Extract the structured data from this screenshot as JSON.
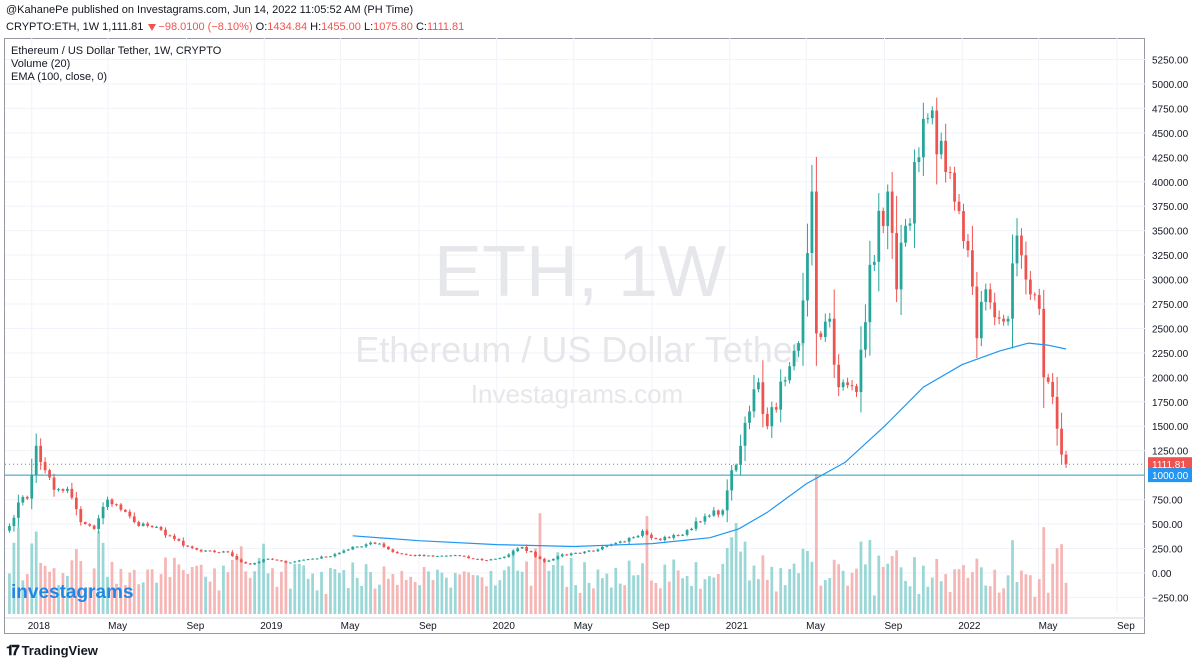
{
  "publisher_line": "@KahanePe published on Investagrams.com, Jun 14, 2022 11:05:52 AM (PH Time)",
  "ohlc": {
    "symbol": "CRYPTO:ETH, 1W",
    "last": "1,111.81",
    "change": "−98.0100 (−8.10%)",
    "o_label": "O:",
    "o": "1434.84",
    "h_label": "H:",
    "h": "1455.00",
    "l_label": "L:",
    "l": "1075.80",
    "c_label": "C:",
    "c": "1111.81"
  },
  "legend": {
    "title": "Ethereum / US Dollar Tether, 1W, CRYPTO",
    "volume": "Volume (20)",
    "ema": "EMA (100, close, 0)"
  },
  "watermark": {
    "line1": "ETH, 1W",
    "line2": "Ethereum / US Dollar Tether",
    "line3": "Investagrams.com"
  },
  "brand": "investagrams",
  "footer": "TradingView",
  "colors": {
    "up": "#26a69a",
    "down": "#ef5350",
    "ema": "#2196f3",
    "level": "#26a0b4",
    "vol_up": "#88d0cf",
    "vol_down": "#f5a9a9"
  },
  "chart_data": {
    "type": "candlestick",
    "symbol": "ETH/USDT",
    "timeframe": "1W",
    "xlim": [
      "2017-11-20",
      "2022-10-15"
    ],
    "ylim": [
      -420,
      5470
    ],
    "y_ticks": [
      "5250.00",
      "5000.00",
      "4750.00",
      "4500.00",
      "4250.00",
      "4000.00",
      "3750.00",
      "3500.00",
      "3250.00",
      "3000.00",
      "2750.00",
      "2500.00",
      "2250.00",
      "2000.00",
      "1750.00",
      "1500.00",
      "1250.00",
      "1000.00",
      "750.00",
      "500.00",
      "250.00",
      "0.00",
      "−250.00"
    ],
    "x_ticks": [
      {
        "label": "2018",
        "date": "2018-01-01"
      },
      {
        "label": "May",
        "date": "2018-05-01"
      },
      {
        "label": "Sep",
        "date": "2018-09-01"
      },
      {
        "label": "2019",
        "date": "2019-01-01"
      },
      {
        "label": "May",
        "date": "2019-05-01"
      },
      {
        "label": "Sep",
        "date": "2019-09-01"
      },
      {
        "label": "2020",
        "date": "2020-01-01"
      },
      {
        "label": "May",
        "date": "2020-05-01"
      },
      {
        "label": "Sep",
        "date": "2020-09-01"
      },
      {
        "label": "2021",
        "date": "2021-01-01"
      },
      {
        "label": "May",
        "date": "2021-05-01"
      },
      {
        "label": "Sep",
        "date": "2021-09-01"
      },
      {
        "label": "2022",
        "date": "2022-01-01"
      },
      {
        "label": "May",
        "date": "2022-05-01"
      },
      {
        "label": "Sep",
        "date": "2022-09-01"
      }
    ],
    "close_anchors": [
      [
        "2017-11-27",
        480
      ],
      [
        "2017-12-11",
        720
      ],
      [
        "2017-12-25",
        760
      ],
      [
        "2018-01-08",
        1300
      ],
      [
        "2018-01-22",
        1050
      ],
      [
        "2018-02-05",
        850
      ],
      [
        "2018-02-26",
        860
      ],
      [
        "2018-03-19",
        520
      ],
      [
        "2018-04-09",
        450
      ],
      [
        "2018-04-30",
        750
      ],
      [
        "2018-05-14",
        700
      ],
      [
        "2018-06-11",
        520
      ],
      [
        "2018-07-09",
        470
      ],
      [
        "2018-08-06",
        380
      ],
      [
        "2018-08-27",
        280
      ],
      [
        "2018-09-24",
        220
      ],
      [
        "2018-11-05",
        210
      ],
      [
        "2018-11-26",
        110
      ],
      [
        "2018-12-10",
        88
      ],
      [
        "2019-01-07",
        145
      ],
      [
        "2019-02-04",
        105
      ],
      [
        "2019-03-04",
        135
      ],
      [
        "2019-04-08",
        165
      ],
      [
        "2019-05-13",
        240
      ],
      [
        "2019-06-17",
        310
      ],
      [
        "2019-07-01",
        300
      ],
      [
        "2019-07-22",
        215
      ],
      [
        "2019-08-12",
        185
      ],
      [
        "2019-09-23",
        168
      ],
      [
        "2019-10-28",
        182
      ],
      [
        "2019-11-18",
        150
      ],
      [
        "2019-12-16",
        130
      ],
      [
        "2020-01-13",
        165
      ],
      [
        "2020-02-10",
        265
      ],
      [
        "2020-03-16",
        115
      ],
      [
        "2020-04-06",
        170
      ],
      [
        "2020-05-04",
        205
      ],
      [
        "2020-06-08",
        240
      ],
      [
        "2020-07-20",
        320
      ],
      [
        "2020-08-17",
        430
      ],
      [
        "2020-09-07",
        350
      ],
      [
        "2020-10-19",
        390
      ],
      [
        "2020-11-23",
        580
      ],
      [
        "2020-12-21",
        640
      ],
      [
        "2021-01-04",
        1050
      ],
      [
        "2021-01-18",
        1300
      ],
      [
        "2021-02-15",
        1950
      ],
      [
        "2021-03-01",
        1500
      ],
      [
        "2021-03-29",
        1970
      ],
      [
        "2021-04-19",
        2350
      ],
      [
        "2021-05-10",
        3900
      ],
      [
        "2021-05-17",
        2450
      ],
      [
        "2021-06-07",
        2600
      ],
      [
        "2021-06-21",
        1900
      ],
      [
        "2021-07-19",
        1850
      ],
      [
        "2021-08-09",
        3150
      ],
      [
        "2021-09-06",
        3900
      ],
      [
        "2021-09-20",
        2900
      ],
      [
        "2021-10-04",
        3550
      ],
      [
        "2021-10-25",
        4250
      ],
      [
        "2021-11-08",
        4650
      ],
      [
        "2021-11-22",
        4280
      ],
      [
        "2021-12-06",
        4100
      ],
      [
        "2021-12-27",
        3700
      ],
      [
        "2022-01-10",
        3300
      ],
      [
        "2022-01-24",
        2400
      ],
      [
        "2022-02-07",
        2900
      ],
      [
        "2022-02-28",
        2600
      ],
      [
        "2022-03-14",
        2600
      ],
      [
        "2022-03-28",
        3450
      ],
      [
        "2022-04-11",
        3000
      ],
      [
        "2022-05-02",
        2700
      ],
      [
        "2022-05-09",
        2000
      ],
      [
        "2022-05-23",
        1800
      ],
      [
        "2022-06-06",
        1210
      ],
      [
        "2022-06-13",
        1111.81
      ]
    ],
    "ema": {
      "name": "EMA (100, close, 0)",
      "points": [
        [
          "2019-05-20",
          380
        ],
        [
          "2019-09-01",
          330
        ],
        [
          "2020-01-01",
          290
        ],
        [
          "2020-05-01",
          270
        ],
        [
          "2020-09-01",
          300
        ],
        [
          "2020-12-01",
          360
        ],
        [
          "2021-01-15",
          450
        ],
        [
          "2021-03-01",
          620
        ],
        [
          "2021-05-01",
          910
        ],
        [
          "2021-07-01",
          1130
        ],
        [
          "2021-09-01",
          1500
        ],
        [
          "2021-11-01",
          1900
        ],
        [
          "2022-01-01",
          2130
        ],
        [
          "2022-03-01",
          2270
        ],
        [
          "2022-04-15",
          2350
        ],
        [
          "2022-05-15",
          2330
        ],
        [
          "2022-06-13",
          2290
        ]
      ]
    },
    "horizontal_line": {
      "value": 1000,
      "label": "1000.00"
    },
    "last_price": {
      "value": 1111.81,
      "label": "1111.81"
    },
    "volume": {
      "name": "Volume (20)",
      "relative_scale": "0-1",
      "notable_spikes": [
        [
          "2020-03-09",
          0.72
        ],
        [
          "2020-08-24",
          0.7
        ],
        [
          "2021-05-17",
          1.0
        ],
        [
          "2021-01-11",
          0.65
        ],
        [
          "2022-05-09",
          0.62
        ]
      ]
    }
  }
}
